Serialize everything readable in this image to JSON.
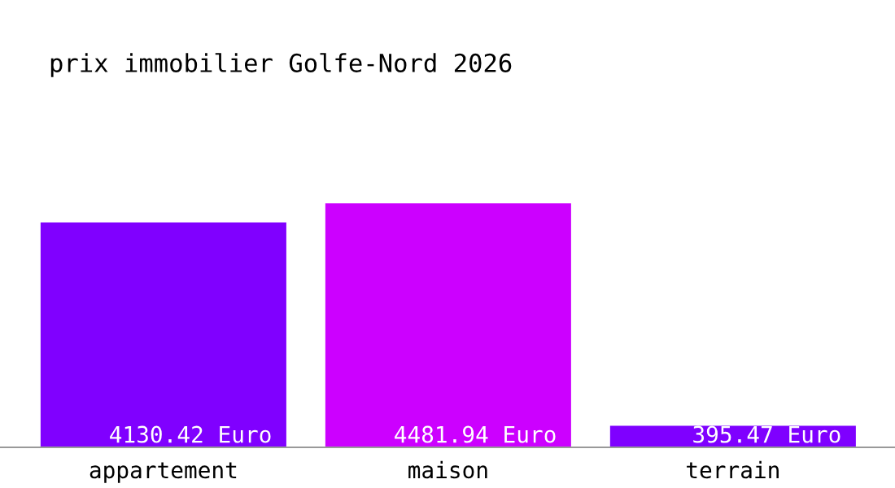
{
  "chart_data": {
    "type": "bar",
    "title": "prix immobilier Golfe-Nord 2026",
    "categories": [
      "appartement",
      "maison",
      "terrain"
    ],
    "values": [
      4130.42,
      4481.94,
      395.47
    ],
    "colors": [
      "#8000ff",
      "#cc00ff",
      "#7f00ff"
    ],
    "value_labels": [
      "4130.42 Euro",
      "4481.94 Euro",
      "395.47 Euro"
    ],
    "grid": false,
    "legend": false
  }
}
